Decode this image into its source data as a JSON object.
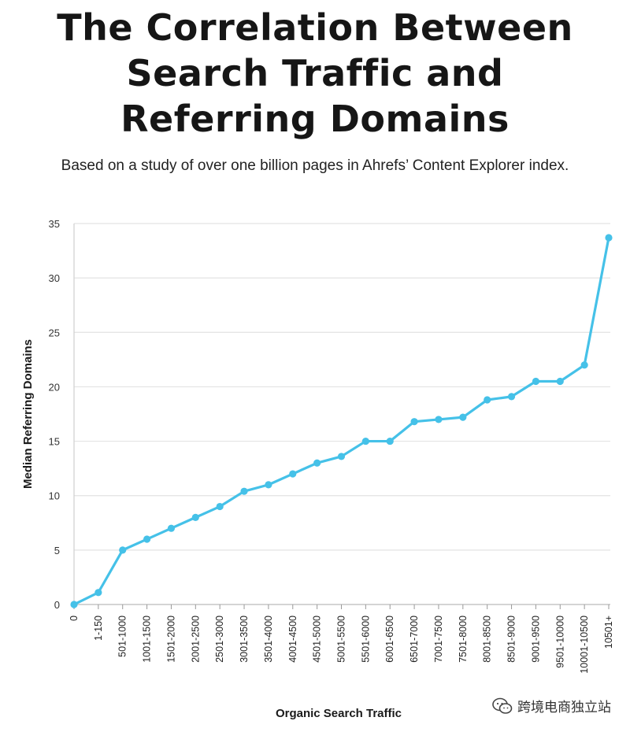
{
  "chart_data": {
    "type": "line",
    "title": "The Correlation Between Search Traffic and Referring Domains",
    "subtitle": "Based on a study of over one billion pages in Ahrefs’ Content Explorer index.",
    "xlabel": "Organic Search Traffic",
    "ylabel": "Median Referring Domains",
    "categories": [
      "0",
      "1-150",
      "501-1000",
      "1001-1500",
      "1501-2000",
      "2001-2500",
      "2501-3000",
      "3001-3500",
      "3501-4000",
      "4001-4500",
      "4501-5000",
      "5001-5500",
      "5501-6000",
      "6001-6500",
      "6501-7000",
      "7001-7500",
      "7501-8000",
      "8001-8500",
      "8501-9000",
      "9001-9500",
      "9501-10000",
      "10001-10500",
      "10501+"
    ],
    "series": [
      {
        "values": [
          0,
          1.1,
          5,
          6,
          7,
          8,
          9,
          10.4,
          11,
          12,
          13,
          13.6,
          15,
          15,
          16.8,
          17,
          17.2,
          18.8,
          19.1,
          20.5,
          20.5,
          22,
          33.7
        ]
      }
    ],
    "ylim": [
      0,
      35
    ],
    "yticks": [
      0,
      5,
      10,
      15,
      20,
      25,
      30,
      35
    ],
    "grid": true,
    "line_color": "#45c1e8"
  },
  "watermark": {
    "text": "跨境电商独立站",
    "icon": "wechat-icon"
  }
}
